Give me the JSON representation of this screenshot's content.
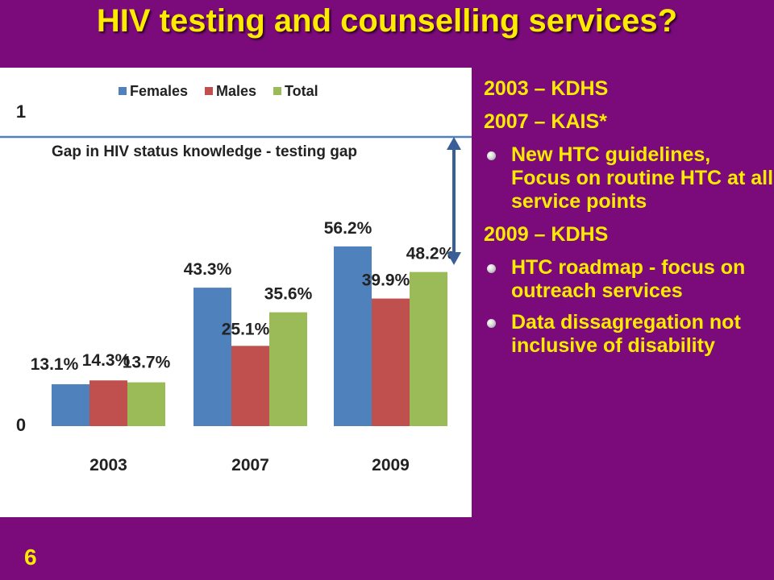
{
  "slide": {
    "title": "HIV testing and counselling services?",
    "number": "6"
  },
  "right_panel": {
    "line1": "2003 – KDHS",
    "line2": "2007 – KAIS*",
    "bullets_2007": [
      "New HTC guidelines, Focus on routine HTC at all service points"
    ],
    "line3": "2009 – KDHS",
    "bullets_2009": [
      "HTC roadmap - focus on outreach services",
      "Data dissagregation not inclusive of disability"
    ]
  },
  "chart_data": {
    "type": "bar",
    "categories": [
      "2003",
      "2007",
      "2009"
    ],
    "series": [
      {
        "name": "Females",
        "values": [
          13.1,
          43.3,
          56.2
        ],
        "labels": [
          "13.1%",
          "43.3%",
          "56.2%"
        ],
        "color": "#4f81bd"
      },
      {
        "name": "Males",
        "values": [
          14.3,
          25.1,
          39.9
        ],
        "labels": [
          "14.3%",
          "25.1%",
          "39.9%"
        ],
        "color": "#c0504d"
      },
      {
        "name": "Total",
        "values": [
          13.7,
          35.6,
          48.2
        ],
        "labels": [
          "13.7%",
          "35.6%",
          "48.2%"
        ],
        "color": "#9bbb59"
      }
    ],
    "ylim": [
      0,
      1
    ],
    "y_tick_labels": [
      "0",
      "1"
    ],
    "legend_position": "top",
    "grid": false,
    "reference_line": {
      "label": "Gap in HIV status knowledge - testing gap",
      "color": "#4f81bd"
    },
    "annotation_arrow": {
      "color": "#3a5f98",
      "range": [
        "48.2%",
        "1"
      ]
    }
  }
}
